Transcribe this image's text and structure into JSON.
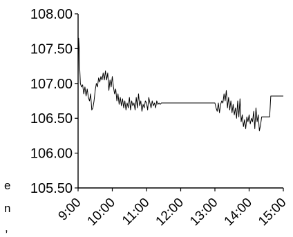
{
  "chart_data": {
    "type": "line",
    "title": "",
    "xlabel": "",
    "ylabel": "",
    "x_ticks": [
      "9:00",
      "10:00",
      "11:00",
      "12:00",
      "13:00",
      "14:00",
      "15:00"
    ],
    "y_ticks": [
      "105.50",
      "106.00",
      "106.50",
      "107.00",
      "107.50",
      "108.00"
    ],
    "ylim": [
      105.5,
      108.0
    ],
    "xlim": [
      "9:00",
      "15:00"
    ],
    "grid": false,
    "legend": "none",
    "series": [
      {
        "color": "#000000",
        "points": [
          [
            "9:00",
            107.1
          ],
          [
            "9:01",
            107.65
          ],
          [
            "9:02",
            107.5
          ],
          [
            "9:03",
            107.2
          ],
          [
            "9:04",
            107.0
          ],
          [
            "9:06",
            106.95
          ],
          [
            "9:08",
            106.98
          ],
          [
            "9:10",
            106.85
          ],
          [
            "9:12",
            106.95
          ],
          [
            "9:14",
            106.82
          ],
          [
            "9:16",
            106.92
          ],
          [
            "9:18",
            106.8
          ],
          [
            "9:20",
            106.75
          ],
          [
            "9:22",
            106.85
          ],
          [
            "9:24",
            106.62
          ],
          [
            "9:26",
            106.65
          ],
          [
            "9:28",
            106.75
          ],
          [
            "9:30",
            106.9
          ],
          [
            "9:32",
            107.0
          ],
          [
            "9:34",
            106.95
          ],
          [
            "9:36",
            107.08
          ],
          [
            "9:38",
            107.02
          ],
          [
            "9:40",
            107.1
          ],
          [
            "9:42",
            107.05
          ],
          [
            "9:44",
            107.15
          ],
          [
            "9:46",
            107.05
          ],
          [
            "9:48",
            107.18
          ],
          [
            "9:50",
            107.05
          ],
          [
            "9:52",
            107.15
          ],
          [
            "9:54",
            106.9
          ],
          [
            "9:56",
            107.05
          ],
          [
            "9:58",
            106.95
          ],
          [
            "10:00",
            107.1
          ],
          [
            "10:02",
            106.95
          ],
          [
            "10:04",
            106.85
          ],
          [
            "10:06",
            106.92
          ],
          [
            "10:08",
            106.75
          ],
          [
            "10:10",
            106.85
          ],
          [
            "10:12",
            106.7
          ],
          [
            "10:14",
            106.8
          ],
          [
            "10:16",
            106.68
          ],
          [
            "10:18",
            106.78
          ],
          [
            "10:20",
            106.65
          ],
          [
            "10:22",
            106.75
          ],
          [
            "10:24",
            106.62
          ],
          [
            "10:26",
            106.72
          ],
          [
            "10:28",
            106.65
          ],
          [
            "10:30",
            106.8
          ],
          [
            "10:32",
            106.62
          ],
          [
            "10:34",
            106.75
          ],
          [
            "10:36",
            106.68
          ],
          [
            "10:38",
            106.72
          ],
          [
            "10:40",
            106.62
          ],
          [
            "10:42",
            106.8
          ],
          [
            "10:44",
            106.65
          ],
          [
            "10:46",
            106.85
          ],
          [
            "10:48",
            106.68
          ],
          [
            "10:50",
            106.75
          ],
          [
            "10:52",
            106.6
          ],
          [
            "10:54",
            106.7
          ],
          [
            "10:56",
            106.65
          ],
          [
            "10:58",
            106.75
          ],
          [
            "11:00",
            106.72
          ],
          [
            "11:02",
            106.62
          ],
          [
            "11:04",
            106.8
          ],
          [
            "11:06",
            106.72
          ],
          [
            "11:08",
            106.65
          ],
          [
            "11:10",
            106.75
          ],
          [
            "11:12",
            106.68
          ],
          [
            "11:14",
            106.72
          ],
          [
            "11:16",
            106.65
          ],
          [
            "11:18",
            106.75
          ],
          [
            "11:20",
            106.7
          ],
          [
            "11:22",
            106.72
          ],
          [
            "11:24",
            106.7
          ],
          [
            "11:26",
            106.72
          ],
          [
            "11:28",
            106.72
          ],
          [
            "13:00",
            106.72
          ],
          [
            "13:02",
            106.65
          ],
          [
            "13:04",
            106.6
          ],
          [
            "13:06",
            106.72
          ],
          [
            "13:08",
            106.58
          ],
          [
            "13:10",
            106.7
          ],
          [
            "13:12",
            106.75
          ],
          [
            "13:14",
            106.72
          ],
          [
            "13:16",
            106.85
          ],
          [
            "13:18",
            106.75
          ],
          [
            "13:20",
            106.9
          ],
          [
            "13:22",
            106.65
          ],
          [
            "13:24",
            106.8
          ],
          [
            "13:26",
            106.62
          ],
          [
            "13:28",
            106.75
          ],
          [
            "13:30",
            106.58
          ],
          [
            "13:32",
            106.7
          ],
          [
            "13:34",
            106.55
          ],
          [
            "13:36",
            106.65
          ],
          [
            "13:38",
            106.5
          ],
          [
            "13:40",
            106.75
          ],
          [
            "13:42",
            106.52
          ],
          [
            "13:44",
            106.78
          ],
          [
            "13:46",
            106.45
          ],
          [
            "13:48",
            106.55
          ],
          [
            "13:50",
            106.38
          ],
          [
            "13:52",
            106.48
          ],
          [
            "13:54",
            106.35
          ],
          [
            "13:56",
            106.52
          ],
          [
            "13:58",
            106.45
          ],
          [
            "14:00",
            106.55
          ],
          [
            "14:02",
            106.42
          ],
          [
            "14:04",
            106.5
          ],
          [
            "14:06",
            106.45
          ],
          [
            "14:08",
            106.6
          ],
          [
            "14:10",
            106.35
          ],
          [
            "14:12",
            106.65
          ],
          [
            "14:14",
            106.45
          ],
          [
            "14:16",
            106.55
          ],
          [
            "14:18",
            106.32
          ],
          [
            "14:20",
            106.4
          ],
          [
            "14:22",
            106.52
          ],
          [
            "14:24",
            106.52
          ],
          [
            "14:30",
            106.52
          ],
          [
            "14:36",
            106.52
          ],
          [
            "14:38",
            106.82
          ],
          [
            "14:45",
            106.82
          ],
          [
            "15:00",
            106.82
          ]
        ]
      }
    ]
  },
  "edge_text": [
    "e",
    "n",
    ","
  ]
}
